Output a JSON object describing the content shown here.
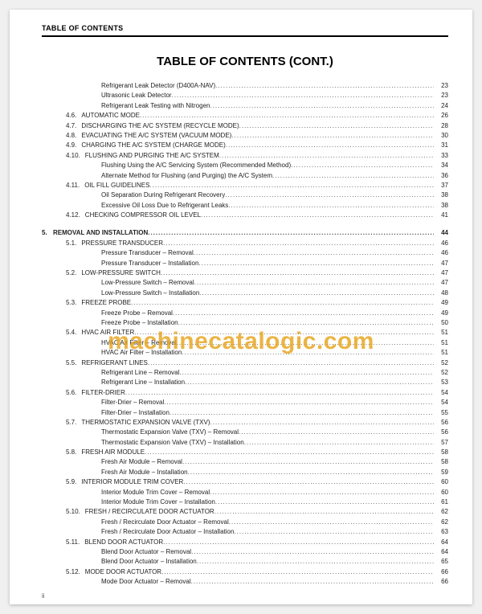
{
  "header": "TABLE OF CONTENTS",
  "title": "TABLE OF CONTENTS (CONT.)",
  "watermark": "machinecatalogic.com",
  "page_indicator": "ii",
  "colors": {
    "watermark": "#e6a012",
    "text": "#222222",
    "rule": "#000000",
    "background": "#ffffff"
  },
  "typography": {
    "body_fontsize_pt": 8,
    "title_fontsize_pt": 15,
    "header_fontsize_pt": 9,
    "watermark_fontsize_pt": 30,
    "line_height": 1.55
  },
  "toc": [
    {
      "level": "ind2",
      "num": "",
      "label": "Refrigerant Leak Detector (D400A-NAV)",
      "page": "23"
    },
    {
      "level": "ind2",
      "num": "",
      "label": "Ultrasonic Leak Detector",
      "page": "23"
    },
    {
      "level": "ind2",
      "num": "",
      "label": "Refrigerant Leak Testing with Nitrogen",
      "page": "24"
    },
    {
      "level": "sub",
      "num": "4.6.",
      "label": "AUTOMATIC MODE",
      "page": "26"
    },
    {
      "level": "sub",
      "num": "4.7.",
      "label": "DISCHARGING THE A/C SYSTEM (RECYCLE MODE)",
      "page": "28"
    },
    {
      "level": "sub",
      "num": "4.8.",
      "label": "EVACUATING THE A/C SYSTEM (VACUUM MODE)",
      "page": "30"
    },
    {
      "level": "sub",
      "num": "4.9.",
      "label": "CHARGING THE A/C SYSTEM (CHARGE MODE)",
      "page": "31"
    },
    {
      "level": "sub",
      "num": "4.10.",
      "label": "FLUSHING AND PURGING THE A/C SYSTEM",
      "page": "33"
    },
    {
      "level": "ind2",
      "num": "",
      "label": "Flushing Using the A/C Servicing System (Recommended Method)",
      "page": "34"
    },
    {
      "level": "ind2",
      "num": "",
      "label": "Alternate Method for Flushing (and Purging) the A/C System",
      "page": "36"
    },
    {
      "level": "sub",
      "num": "4.11.",
      "label": "OIL FILL GUIDELINES",
      "page": "37"
    },
    {
      "level": "ind2",
      "num": "",
      "label": "Oil Separation During Refrigerant Recovery",
      "page": "38"
    },
    {
      "level": "ind2",
      "num": "",
      "label": "Excessive Oil Loss Due to Refrigerant Leaks",
      "page": "38"
    },
    {
      "level": "sub",
      "num": "4.12.",
      "label": "CHECKING COMPRESSOR OIL LEVEL",
      "page": "41"
    },
    {
      "level": "spacer"
    },
    {
      "level": "sec",
      "num": "5.",
      "label": "REMOVAL AND INSTALLATION",
      "page": "44",
      "bold": true
    },
    {
      "level": "sub",
      "num": "5.1.",
      "label": "PRESSURE TRANSDUCER",
      "page": "46"
    },
    {
      "level": "ind2",
      "num": "",
      "label": "Pressure Transducer – Removal",
      "page": "46"
    },
    {
      "level": "ind2",
      "num": "",
      "label": "Pressure Transducer – Installation",
      "page": "47"
    },
    {
      "level": "sub",
      "num": "5.2.",
      "label": "LOW-PRESSURE SWITCH",
      "page": "47"
    },
    {
      "level": "ind2",
      "num": "",
      "label": "Low-Pressure Switch – Removal",
      "page": "47"
    },
    {
      "level": "ind2",
      "num": "",
      "label": "Low-Pressure Switch – Installation",
      "page": "48"
    },
    {
      "level": "sub",
      "num": "5.3.",
      "label": "FREEZE PROBE",
      "page": "49"
    },
    {
      "level": "ind2",
      "num": "",
      "label": "Freeze Probe – Removal",
      "page": "49"
    },
    {
      "level": "ind2",
      "num": "",
      "label": "Freeze Probe – Installation",
      "page": "50"
    },
    {
      "level": "sub",
      "num": "5.4.",
      "label": "HVAC AIR FILTER",
      "page": "51"
    },
    {
      "level": "ind2",
      "num": "",
      "label": "HVAC Air Filter – Removal",
      "page": "51"
    },
    {
      "level": "ind2",
      "num": "",
      "label": "HVAC Air Filter – Installation",
      "page": "51"
    },
    {
      "level": "sub",
      "num": "5.5.",
      "label": "REFRIGERANT LINES",
      "page": "52"
    },
    {
      "level": "ind2",
      "num": "",
      "label": "Refrigerant Line – Removal",
      "page": "52"
    },
    {
      "level": "ind2",
      "num": "",
      "label": "Refrigerant Line – Installation",
      "page": "53"
    },
    {
      "level": "sub",
      "num": "5.6.",
      "label": "FILTER-DRIER",
      "page": "54"
    },
    {
      "level": "ind2",
      "num": "",
      "label": "Filter-Drier – Removal",
      "page": "54"
    },
    {
      "level": "ind2",
      "num": "",
      "label": "Filter-Drier – Installation",
      "page": "55"
    },
    {
      "level": "sub",
      "num": "5.7.",
      "label": "THERMOSTATIC EXPANSION VALVE (TXV)",
      "page": "56"
    },
    {
      "level": "ind2",
      "num": "",
      "label": "Thermostatic Expansion Valve (TXV) – Removal",
      "page": "56"
    },
    {
      "level": "ind2",
      "num": "",
      "label": "Thermostatic Expansion Valve (TXV) – Installation",
      "page": "57"
    },
    {
      "level": "sub",
      "num": "5.8.",
      "label": "FRESH AIR MODULE",
      "page": "58"
    },
    {
      "level": "ind2",
      "num": "",
      "label": "Fresh Air Module – Removal",
      "page": "58"
    },
    {
      "level": "ind2",
      "num": "",
      "label": "Fresh Air Module – Installation",
      "page": "59"
    },
    {
      "level": "sub",
      "num": "5.9.",
      "label": "INTERIOR MODULE TRIM COVER",
      "page": "60"
    },
    {
      "level": "ind2",
      "num": "",
      "label": "Interior Module Trim Cover – Removal",
      "page": "60"
    },
    {
      "level": "ind2",
      "num": "",
      "label": "Interior Module Trim Cover – Installation",
      "page": "61"
    },
    {
      "level": "sub",
      "num": "5.10.",
      "label": "FRESH / RECIRCULATE DOOR ACTUATOR",
      "page": "62"
    },
    {
      "level": "ind2",
      "num": "",
      "label": "Fresh / Recirculate Door Actuator – Removal",
      "page": "62"
    },
    {
      "level": "ind2",
      "num": "",
      "label": "Fresh / Recirculate Door Actuator – Installation",
      "page": "63"
    },
    {
      "level": "sub",
      "num": "5.11.",
      "label": "BLEND DOOR ACTUATOR",
      "page": "64"
    },
    {
      "level": "ind2",
      "num": "",
      "label": "Blend Door Actuator – Removal",
      "page": "64"
    },
    {
      "level": "ind2",
      "num": "",
      "label": "Blend Door Actuator – Installation",
      "page": "65"
    },
    {
      "level": "sub",
      "num": "5.12.",
      "label": "MODE DOOR ACTUATOR",
      "page": "66"
    },
    {
      "level": "ind2",
      "num": "",
      "label": "Mode Door Actuator – Removal",
      "page": "66"
    }
  ]
}
